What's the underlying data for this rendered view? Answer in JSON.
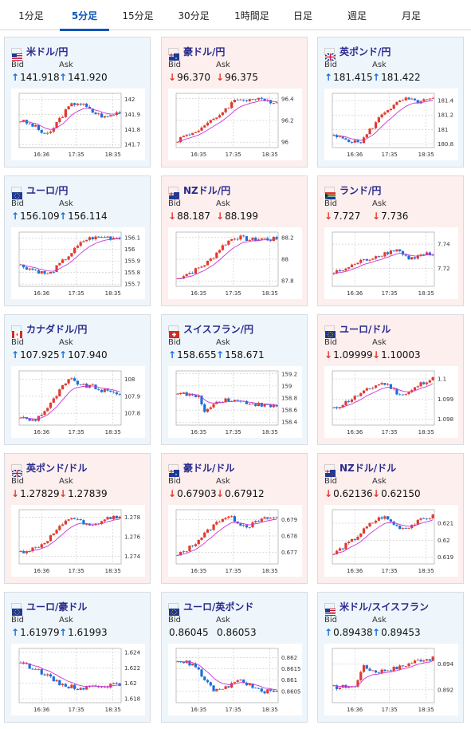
{
  "tabs": [
    {
      "label": "1分足"
    },
    {
      "label": "5分足"
    },
    {
      "label": "15分足"
    },
    {
      "label": "30分足"
    },
    {
      "label": "1時間足"
    },
    {
      "label": "日足"
    },
    {
      "label": "週足"
    },
    {
      "label": "月足"
    }
  ],
  "active_tab": "5分足",
  "colors": {
    "up_arrow": "#1b6fd8",
    "down_arrow": "#e03a2e",
    "candle_up": "#e03a2e",
    "candle_down": "#1b6fd8",
    "ma": "#c737d6"
  },
  "labels": {
    "bid": "Bid",
    "ask": "Ask"
  },
  "pairs": [
    {
      "name": "米ドル/円",
      "flag": "us-flag",
      "bid": "141.918",
      "ask": "141.920",
      "bid_dir": "up",
      "ask_dir": "up",
      "chart_data": {
        "type": "candlestick",
        "x_ticks": [
          "16:36",
          "17:35",
          "18:35"
        ],
        "y_ticks": [
          "142",
          "141.9",
          "141.8",
          "141.7"
        ],
        "ylim": [
          141.68,
          142.04
        ],
        "close_path": [
          141.86,
          141.84,
          141.82,
          141.78,
          141.76,
          141.84,
          141.9,
          141.96,
          141.98,
          141.96,
          141.92,
          141.9,
          141.88,
          141.9,
          141.92
        ]
      }
    },
    {
      "name": "豪ドル/円",
      "flag": "au-flag",
      "bid": "96.370",
      "ask": "96.375",
      "bid_dir": "down",
      "ask_dir": "down",
      "chart_data": {
        "type": "candlestick",
        "x_ticks": [
          "16:35",
          "17:35",
          "18:35"
        ],
        "y_ticks": [
          "96.4",
          "96.2",
          "96"
        ],
        "ylim": [
          95.95,
          96.45
        ],
        "close_path": [
          96.02,
          96.06,
          96.08,
          96.12,
          96.16,
          96.2,
          96.26,
          96.32,
          96.38,
          96.4,
          96.39,
          96.4,
          96.38,
          96.38,
          96.37
        ]
      }
    },
    {
      "name": "英ポンド/円",
      "flag": "gb-flag",
      "bid": "181.415",
      "ask": "181.422",
      "bid_dir": "up",
      "ask_dir": "up",
      "chart_data": {
        "type": "candlestick",
        "x_ticks": [
          "16:36",
          "17:35",
          "18:35"
        ],
        "y_ticks": [
          "181.4",
          "181.2",
          "181",
          "180.8"
        ],
        "ylim": [
          180.75,
          181.5
        ],
        "close_path": [
          180.9,
          180.88,
          180.86,
          180.82,
          180.84,
          180.98,
          181.1,
          181.24,
          181.3,
          181.36,
          181.42,
          181.4,
          181.38,
          181.4,
          181.42
        ]
      }
    },
    {
      "name": "ユーロ/円",
      "flag": "eu-flag",
      "bid": "156.109",
      "ask": "156.114",
      "bid_dir": "up",
      "ask_dir": "up",
      "chart_data": {
        "type": "candlestick",
        "x_ticks": [
          "16:36",
          "17:35",
          "18:35"
        ],
        "y_ticks": [
          "156.1",
          "156",
          "155.9",
          "155.8",
          "155.7"
        ],
        "ylim": [
          155.68,
          156.15
        ],
        "close_path": [
          155.86,
          155.84,
          155.82,
          155.8,
          155.78,
          155.84,
          155.9,
          155.96,
          156.02,
          156.08,
          156.1,
          156.1,
          156.11,
          156.1,
          156.11
        ]
      }
    },
    {
      "name": "NZドル/円",
      "flag": "nz-flag",
      "bid": "88.187",
      "ask": "88.199",
      "bid_dir": "down",
      "ask_dir": "down",
      "chart_data": {
        "type": "candlestick",
        "x_ticks": [
          "16:35",
          "17:35",
          "18:35"
        ],
        "y_ticks": [
          "88.2",
          "88",
          "87.8"
        ],
        "ylim": [
          87.75,
          88.25
        ],
        "close_path": [
          87.82,
          87.86,
          87.88,
          87.92,
          87.96,
          88.02,
          88.1,
          88.16,
          88.2,
          88.2,
          88.18,
          88.18,
          88.19,
          88.18,
          88.19
        ]
      }
    },
    {
      "name": "ランド/円",
      "flag": "za-flag",
      "bid": "7.727",
      "ask": "7.736",
      "bid_dir": "down",
      "ask_dir": "down",
      "chart_data": {
        "type": "candlestick",
        "x_ticks": [
          "16:36",
          "17:35",
          "18:35"
        ],
        "y_ticks": [
          "7.74",
          "7.72"
        ],
        "ylim": [
          7.705,
          7.75
        ],
        "close_path": [
          7.716,
          7.718,
          7.72,
          7.724,
          7.726,
          7.728,
          7.73,
          7.732,
          7.734,
          7.736,
          7.73,
          7.728,
          7.73,
          7.732,
          7.73
        ]
      }
    },
    {
      "name": "カナダドル/円",
      "flag": "ca-flag",
      "bid": "107.925",
      "ask": "107.940",
      "bid_dir": "up",
      "ask_dir": "up",
      "chart_data": {
        "type": "candlestick",
        "x_ticks": [
          "16:36",
          "17:35",
          "18:35"
        ],
        "y_ticks": [
          "108",
          "107.9",
          "107.8"
        ],
        "ylim": [
          107.73,
          108.05
        ],
        "close_path": [
          107.78,
          107.76,
          107.76,
          107.8,
          107.84,
          107.9,
          107.96,
          108.0,
          107.98,
          107.96,
          107.96,
          107.94,
          107.93,
          107.92,
          107.92
        ]
      }
    },
    {
      "name": "スイスフラン/円",
      "flag": "ch-flag",
      "bid": "158.655",
      "ask": "158.671",
      "bid_dir": "up",
      "ask_dir": "up",
      "chart_data": {
        "type": "candlestick",
        "x_ticks": [
          "16:35",
          "17:35",
          "18:35"
        ],
        "y_ticks": [
          "159.2",
          "159",
          "158.8",
          "158.6",
          "158.4"
        ],
        "ylim": [
          158.35,
          159.25
        ],
        "close_path": [
          158.9,
          158.86,
          158.84,
          158.8,
          158.56,
          158.7,
          158.76,
          158.78,
          158.76,
          158.74,
          158.72,
          158.7,
          158.68,
          158.66,
          158.66
        ]
      }
    },
    {
      "name": "ユーロ/ドル",
      "flag": "eu-flag",
      "bid": "1.09999",
      "ask": "1.10003",
      "bid_dir": "down",
      "ask_dir": "down",
      "chart_data": {
        "type": "candlestick",
        "x_ticks": [
          "16:36",
          "17:35",
          "18:35"
        ],
        "y_ticks": [
          "1.1",
          "1.099",
          "1.098"
        ],
        "ylim": [
          1.0977,
          1.1004
        ],
        "close_path": [
          1.0985,
          1.0987,
          1.0989,
          1.0991,
          1.0993,
          1.0995,
          1.0997,
          1.0998,
          1.0996,
          1.0993,
          1.0992,
          1.0994,
          1.0997,
          1.0999,
          1.1
        ]
      }
    },
    {
      "name": "英ポンド/ドル",
      "flag": "gb-flag",
      "bid": "1.27829",
      "ask": "1.27839",
      "bid_dir": "down",
      "ask_dir": "down",
      "chart_data": {
        "type": "candlestick",
        "x_ticks": [
          "16:36",
          "17:35",
          "18:35"
        ],
        "y_ticks": [
          "1.278",
          "1.276",
          "1.274"
        ],
        "ylim": [
          1.2732,
          1.2788
        ],
        "close_path": [
          1.2744,
          1.2746,
          1.2748,
          1.2752,
          1.2758,
          1.2766,
          1.2772,
          1.278,
          1.2778,
          1.2772,
          1.277,
          1.2774,
          1.2778,
          1.278,
          1.2782
        ]
      }
    },
    {
      "name": "豪ドル/ドル",
      "flag": "au-flag",
      "bid": "0.67903",
      "ask": "0.67912",
      "bid_dir": "down",
      "ask_dir": "down",
      "chart_data": {
        "type": "candlestick",
        "x_ticks": [
          "16:35",
          "17:35",
          "18:35"
        ],
        "y_ticks": [
          "0.679",
          "0.678",
          "0.677"
        ],
        "ylim": [
          0.6763,
          0.6796
        ],
        "close_path": [
          0.6768,
          0.6771,
          0.6774,
          0.6778,
          0.6782,
          0.6786,
          0.679,
          0.6792,
          0.679,
          0.6787,
          0.6786,
          0.6788,
          0.679,
          0.6791,
          0.6791
        ]
      }
    },
    {
      "name": "NZドル/ドル",
      "flag": "nz-flag",
      "bid": "0.62136",
      "ask": "0.62150",
      "bid_dir": "down",
      "ask_dir": "down",
      "chart_data": {
        "type": "candlestick",
        "x_ticks": [
          "16:36",
          "17:35",
          "18:35"
        ],
        "y_ticks": [
          "0.621",
          "0.62",
          "0.619"
        ],
        "ylim": [
          0.6186,
          0.6218
        ],
        "close_path": [
          0.6192,
          0.6195,
          0.6198,
          0.6201,
          0.6205,
          0.6209,
          0.6212,
          0.6214,
          0.6211,
          0.6208,
          0.6207,
          0.6209,
          0.6211,
          0.6213,
          0.6214
        ]
      }
    },
    {
      "name": "ユーロ/豪ドル",
      "flag": "eu-flag",
      "bid": "1.61979",
      "ask": "1.61993",
      "bid_dir": "up",
      "ask_dir": "up",
      "chart_data": {
        "type": "candlestick",
        "x_ticks": [
          "16:36",
          "17:35",
          "18:35"
        ],
        "y_ticks": [
          "1.624",
          "1.622",
          "1.62",
          "1.618"
        ],
        "ylim": [
          1.6175,
          1.6245
        ],
        "close_path": [
          1.6228,
          1.6222,
          1.622,
          1.6214,
          1.6208,
          1.6202,
          1.6198,
          1.6196,
          1.6194,
          1.6194,
          1.6196,
          1.6198,
          1.6197,
          1.6198,
          1.6198
        ]
      }
    },
    {
      "name": "ユーロ/英ポンド",
      "flag": "eu-flag",
      "bid": "0.86045",
      "ask": "0.86053",
      "bid_dir": "none",
      "ask_dir": "none",
      "chart_data": {
        "type": "candlestick",
        "x_ticks": [
          "16:35",
          "17:35",
          "18:35"
        ],
        "y_ticks": [
          "0.862",
          "0.8615",
          "0.861",
          "0.8605"
        ],
        "ylim": [
          0.86,
          0.8624
        ],
        "close_path": [
          0.8619,
          0.8618,
          0.8617,
          0.8614,
          0.8609,
          0.8606,
          0.8605,
          0.8607,
          0.8609,
          0.861,
          0.8608,
          0.8606,
          0.8605,
          0.8605,
          0.8605
        ]
      }
    },
    {
      "name": "米ドル/スイスフラン",
      "flag": "us-flag",
      "bid": "0.89438",
      "ask": "0.89453",
      "bid_dir": "up",
      "ask_dir": "up",
      "chart_data": {
        "type": "candlestick",
        "x_ticks": [
          "16:36",
          "17:35",
          "18:35"
        ],
        "y_ticks": [
          "0.894",
          "0.892"
        ],
        "ylim": [
          0.891,
          0.8952
        ],
        "close_path": [
          0.8922,
          0.8922,
          0.8923,
          0.8922,
          0.8938,
          0.8936,
          0.8934,
          0.8935,
          0.8936,
          0.8937,
          0.8939,
          0.8941,
          0.8943,
          0.8944,
          0.8944
        ]
      }
    }
  ]
}
